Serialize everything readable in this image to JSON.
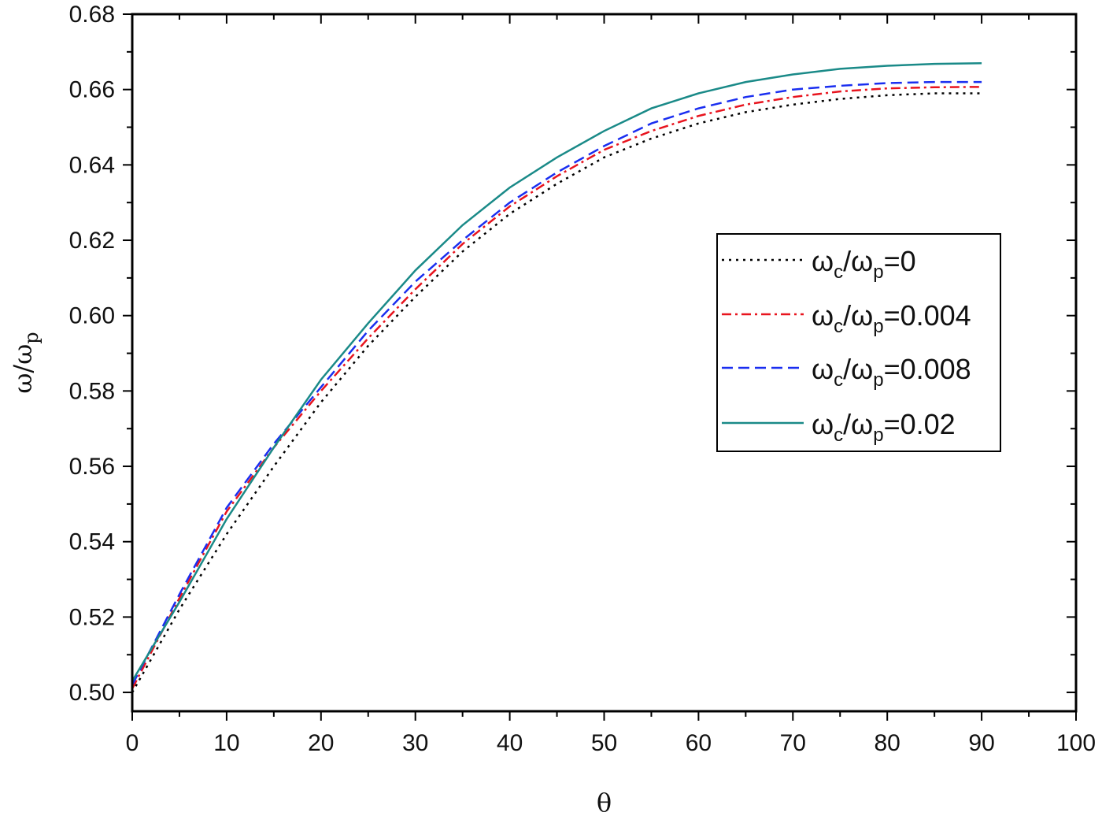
{
  "chart_data": {
    "type": "line",
    "xlabel": "θ",
    "ylabel": {
      "main": "ω/ω",
      "sub": "p"
    },
    "xlim": [
      0,
      100
    ],
    "ylim": [
      0.495,
      0.68
    ],
    "x_ticks": [
      "0",
      "10",
      "20",
      "30",
      "40",
      "50",
      "60",
      "70",
      "80",
      "90",
      "100"
    ],
    "y_ticks": [
      "0.50",
      "0.52",
      "0.54",
      "0.56",
      "0.58",
      "0.60",
      "0.62",
      "0.64",
      "0.66",
      "0.68"
    ],
    "legend_position": "center-right",
    "grid": false,
    "x": [
      0,
      5,
      10,
      15,
      20,
      25,
      30,
      35,
      40,
      45,
      50,
      55,
      60,
      65,
      70,
      75,
      80,
      85,
      90
    ],
    "series": [
      {
        "name": "ω_c/ω_p=0",
        "label_main": "ω",
        "label_sub1": "c",
        "label_mid": "/ω",
        "label_sub2": "p",
        "label_tail": "=0",
        "color": "#000000",
        "dash": "3,6",
        "values": [
          0.5,
          0.522,
          0.542,
          0.56,
          0.577,
          0.592,
          0.605,
          0.617,
          0.627,
          0.635,
          0.642,
          0.647,
          0.651,
          0.654,
          0.656,
          0.6575,
          0.6585,
          0.659,
          0.659
        ]
      },
      {
        "name": "ω_c/ω_p=0.004",
        "label_main": "ω",
        "label_sub1": "c",
        "label_mid": "/ω",
        "label_sub2": "p",
        "label_tail": "=0.004",
        "color": "#e8141e",
        "dash": "12,5,3,5",
        "values": [
          0.501,
          0.525,
          0.548,
          0.565,
          0.58,
          0.594,
          0.607,
          0.619,
          0.629,
          0.637,
          0.644,
          0.649,
          0.653,
          0.656,
          0.658,
          0.6595,
          0.6603,
          0.6606,
          0.6607
        ]
      },
      {
        "name": "ω_c/ω_p=0.008",
        "label_main": "ω",
        "label_sub1": "c",
        "label_mid": "/ω",
        "label_sub2": "p",
        "label_tail": "=0.008",
        "color": "#1a2ef0",
        "dash": "14,7",
        "values": [
          0.502,
          0.526,
          0.549,
          0.566,
          0.581,
          0.596,
          0.609,
          0.62,
          0.63,
          0.638,
          0.645,
          0.651,
          0.655,
          0.658,
          0.66,
          0.661,
          0.6617,
          0.662,
          0.662
        ]
      },
      {
        "name": "ω_c/ω_p=0.02",
        "label_main": "ω",
        "label_sub1": "c",
        "label_mid": "/ω",
        "label_sub2": "p",
        "label_tail": "=0.02",
        "color": "#1a8a88",
        "dash": "",
        "values": [
          0.503,
          0.524,
          0.546,
          0.565,
          0.583,
          0.598,
          0.612,
          0.624,
          0.634,
          0.642,
          0.649,
          0.655,
          0.659,
          0.662,
          0.664,
          0.6655,
          0.6663,
          0.6668,
          0.667
        ]
      }
    ]
  }
}
